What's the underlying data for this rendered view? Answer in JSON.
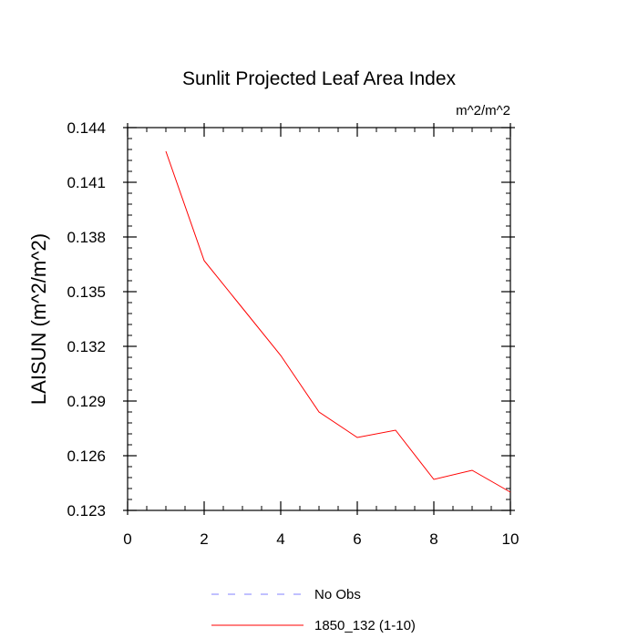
{
  "chart_data": {
    "type": "line",
    "title": "Sunlit Projected Leaf Area Index",
    "units": "m^2/m^2",
    "ylabel": "LAISUN  (m^2/m^2)",
    "xlabel": "",
    "xlim": [
      0,
      10
    ],
    "ylim": [
      0.123,
      0.144
    ],
    "x_ticks": [
      0,
      2,
      4,
      6,
      8,
      10
    ],
    "x_tick_labels": [
      "0",
      "2",
      "4",
      "6",
      "8",
      "10"
    ],
    "y_ticks": [
      0.123,
      0.126,
      0.129,
      0.132,
      0.135,
      0.138,
      0.141,
      0.144
    ],
    "y_tick_labels": [
      "0.123",
      "0.126",
      "0.129",
      "0.132",
      "0.135",
      "0.138",
      "0.141",
      "0.144"
    ],
    "grid": false,
    "legend_position": "bottom",
    "series": [
      {
        "name": "No Obs",
        "color": "#8080ff",
        "dash": "dashed",
        "x": [],
        "y": []
      },
      {
        "name": "1850_132 (1-10)",
        "color": "#ff0000",
        "dash": "solid",
        "x": [
          1,
          2,
          3,
          4,
          5,
          6,
          7,
          8,
          9,
          10
        ],
        "y": [
          0.1427,
          0.1367,
          0.1341,
          0.1315,
          0.1284,
          0.127,
          0.1274,
          0.1247,
          0.1252,
          0.124
        ]
      }
    ]
  }
}
